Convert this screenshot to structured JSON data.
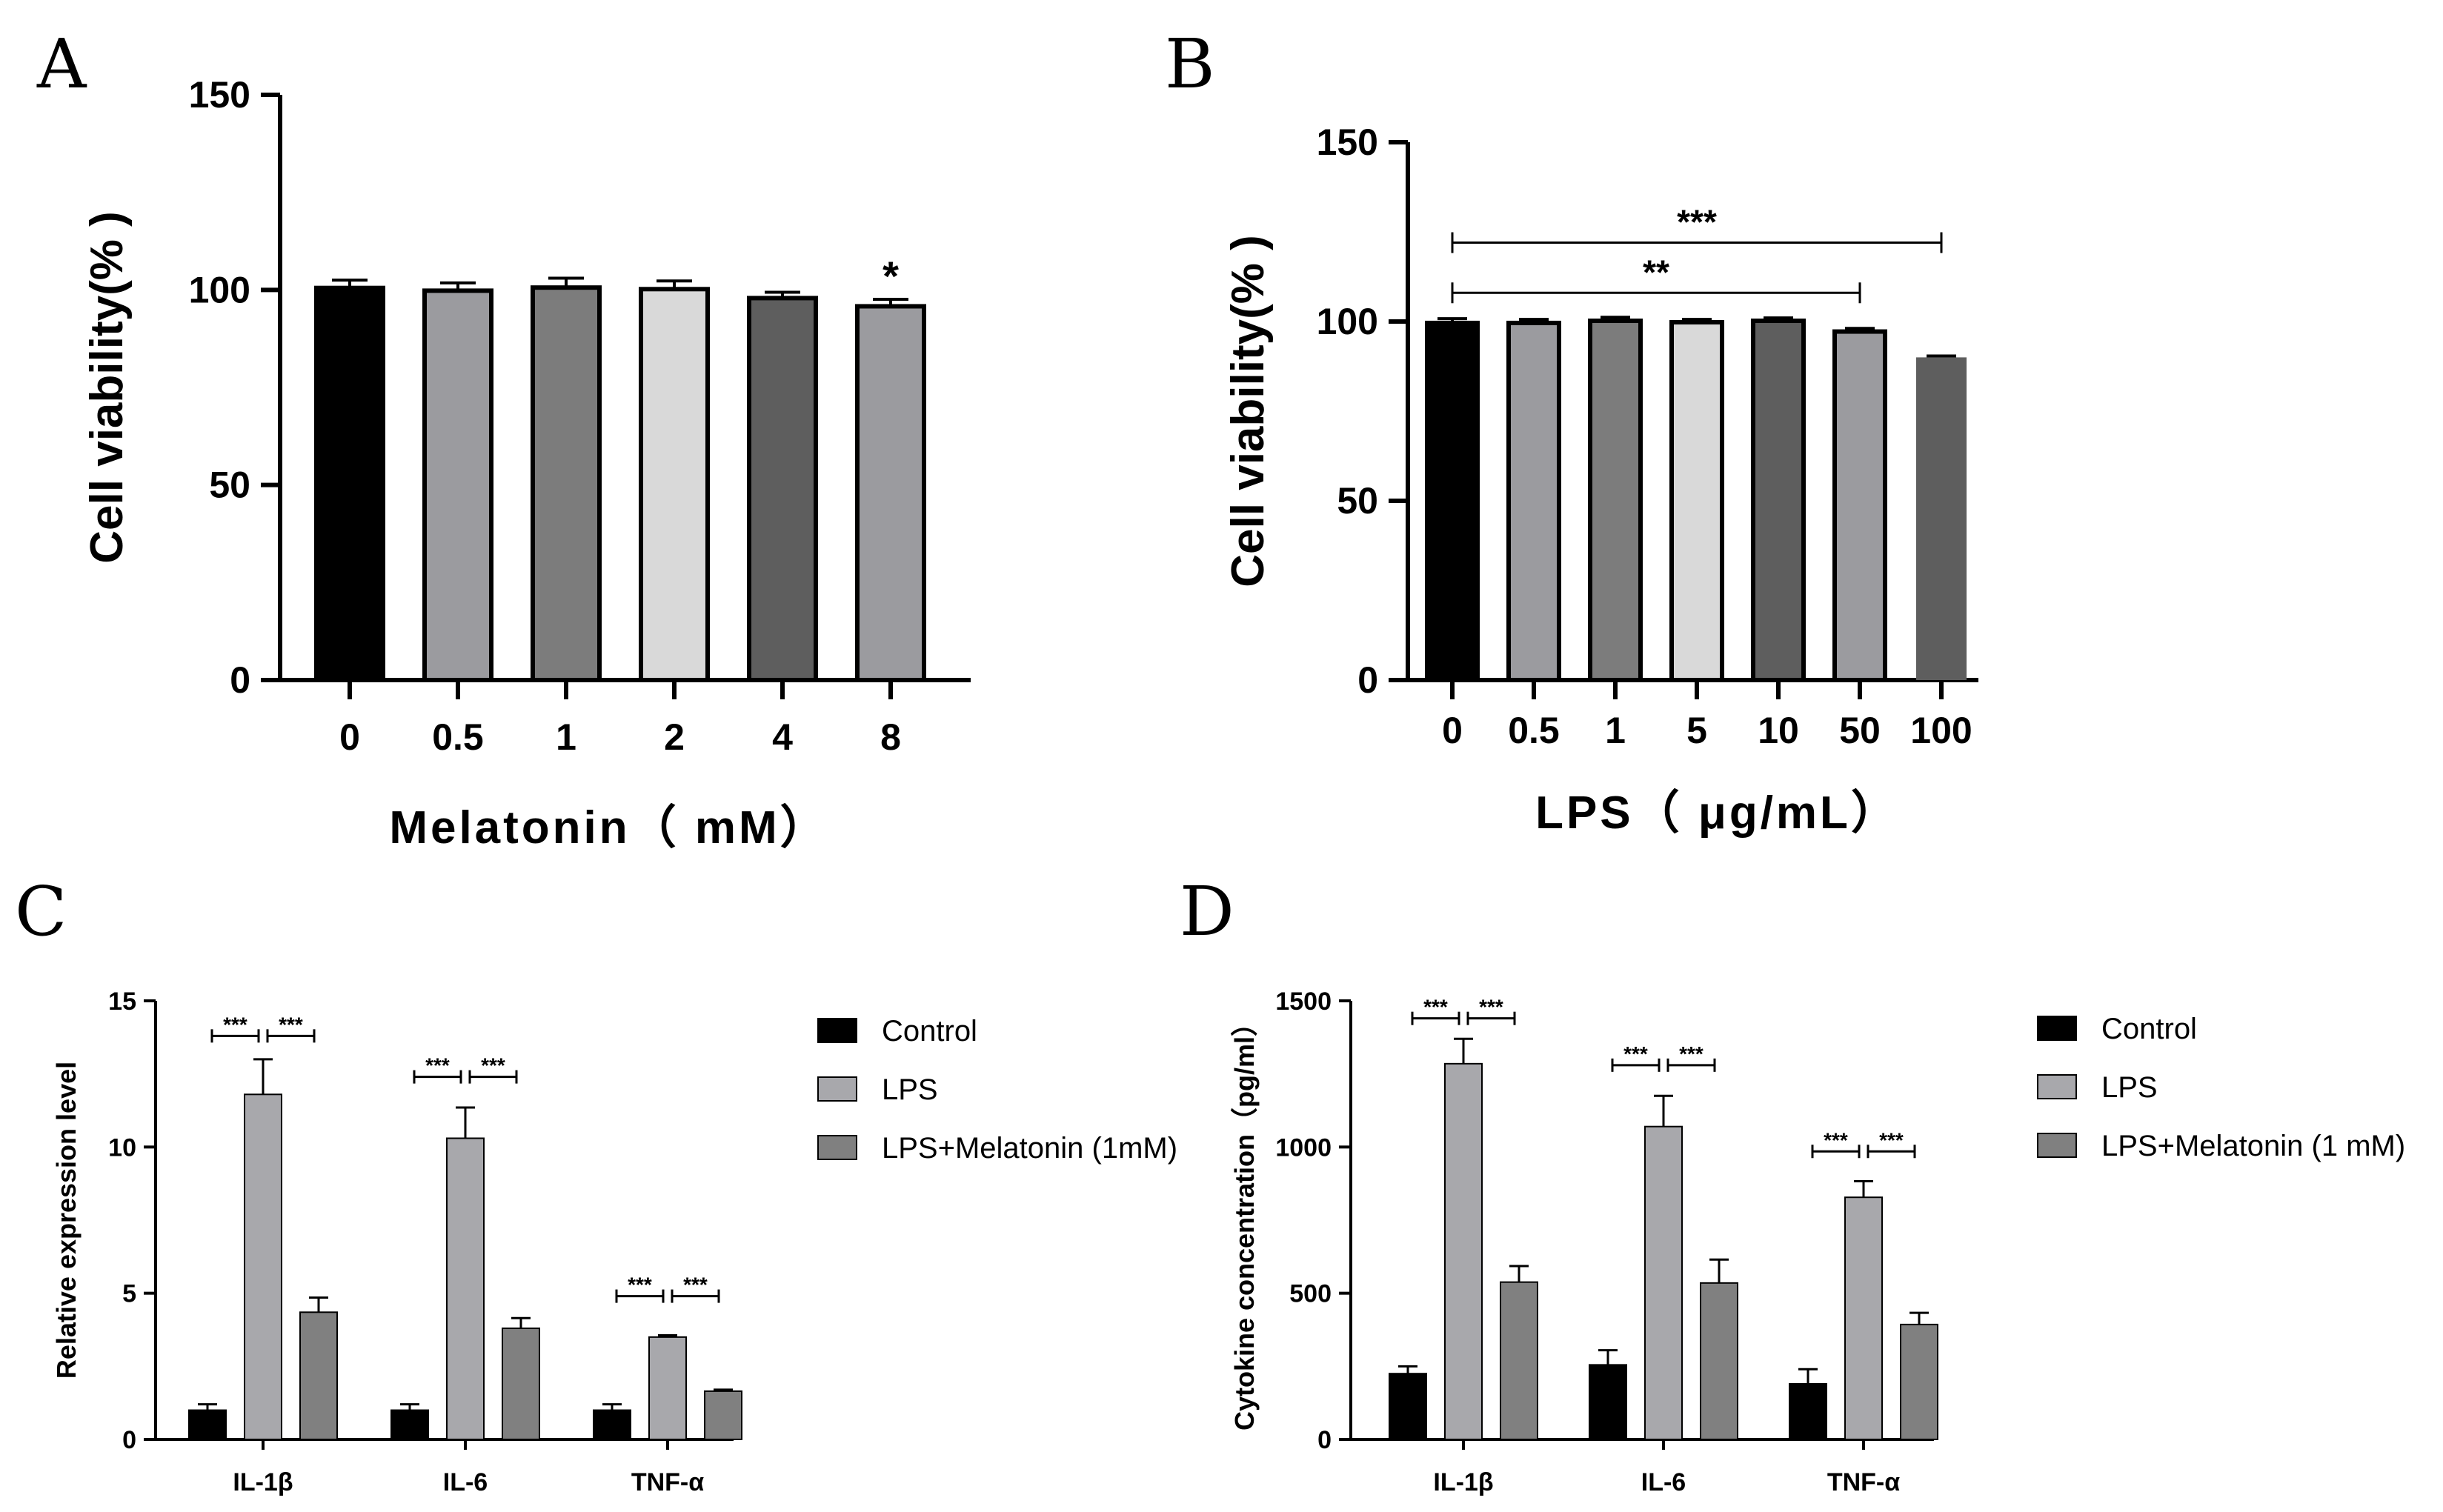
{
  "chart_data": [
    {
      "panel": "A",
      "type": "bar",
      "ylabel": "Cell viability(% )",
      "xlabel": "Melatonin（ mM）",
      "ylim": [
        0,
        150
      ],
      "yticks": [
        0,
        50,
        100,
        150
      ],
      "categories": [
        "0",
        "0.5",
        "1",
        "2",
        "4",
        "8"
      ],
      "values": [
        100.5,
        99.8,
        100.6,
        100.2,
        97.9,
        95.8
      ],
      "errors": [
        2.0,
        2.0,
        2.4,
        2.1,
        1.5,
        1.8
      ],
      "colors": [
        "#000000",
        "#9b9b9f",
        "#7c7c7c",
        "#d9d9d9",
        "#5e5e5e",
        "#9b9b9f"
      ],
      "annotations": [
        {
          "text": "*",
          "category_index": 5
        }
      ]
    },
    {
      "panel": "B",
      "type": "bar",
      "ylabel": "Cell viability(% )",
      "xlabel": "LPS（ μg/mL）",
      "ylim": [
        0,
        150
      ],
      "yticks": [
        0,
        50,
        100,
        150
      ],
      "categories": [
        "0",
        "0.5",
        "1",
        "5",
        "10",
        "50",
        "100"
      ],
      "values": [
        99.6,
        99.6,
        100.2,
        99.8,
        100.2,
        97.2,
        90.0
      ],
      "errors": [
        1.2,
        1.0,
        1.0,
        0.8,
        0.8,
        0.9,
        0.4
      ],
      "colors": [
        "#000000",
        "#9b9b9f",
        "#7c7c7c",
        "#d9d9d9",
        "#5e5e5e",
        "#9b9b9f",
        "#5e5e5e"
      ],
      "brackets": [
        {
          "text": "***",
          "from": 0,
          "to": 6,
          "level": 122
        },
        {
          "text": "**",
          "from": 0,
          "to": 5,
          "level": 108
        }
      ]
    },
    {
      "panel": "C",
      "type": "bar",
      "ylabel": "Relative expression level",
      "ylim": [
        0,
        15
      ],
      "yticks": [
        0,
        5,
        10,
        15
      ],
      "categories": [
        "IL-1β",
        "IL-6",
        "TNF-α"
      ],
      "series": [
        {
          "name": "Control",
          "color": "#000000",
          "values": [
            1.0,
            1.0,
            1.0
          ],
          "errors": [
            0.2,
            0.2,
            0.2
          ]
        },
        {
          "name": "LPS",
          "color": "#a8a8ac",
          "values": [
            11.8,
            10.3,
            3.5
          ],
          "errors": [
            1.2,
            1.05,
            0.06
          ]
        },
        {
          "name": "LPS+Melatonin (1mM)",
          "color": "#808080",
          "values": [
            4.35,
            3.8,
            1.65
          ],
          "errors": [
            0.5,
            0.35,
            0.05
          ]
        }
      ],
      "sig_label": "***",
      "sig_levels": [
        13.8,
        12.4,
        4.9
      ]
    },
    {
      "panel": "D",
      "type": "bar",
      "ylabel": "Cytokine concentration（pg/ml）",
      "ylim": [
        0,
        1500
      ],
      "yticks": [
        0,
        500,
        1000,
        1500
      ],
      "categories": [
        "IL-1β",
        "IL-6",
        "TNF-α"
      ],
      "series": [
        {
          "name": "Control",
          "color": "#000000",
          "values": [
            225,
            255,
            190
          ],
          "errors": [
            25,
            50,
            50
          ]
        },
        {
          "name": "LPS",
          "color": "#a8a8ac",
          "values": [
            1285,
            1070,
            828
          ],
          "errors": [
            85,
            105,
            55
          ]
        },
        {
          "name": "LPS+Melatonin (1 mM)",
          "color": "#808080",
          "values": [
            538,
            535,
            393
          ],
          "errors": [
            55,
            80,
            40
          ]
        }
      ],
      "sig_label": "***",
      "sig_levels": [
        1440,
        1280,
        985
      ]
    }
  ]
}
